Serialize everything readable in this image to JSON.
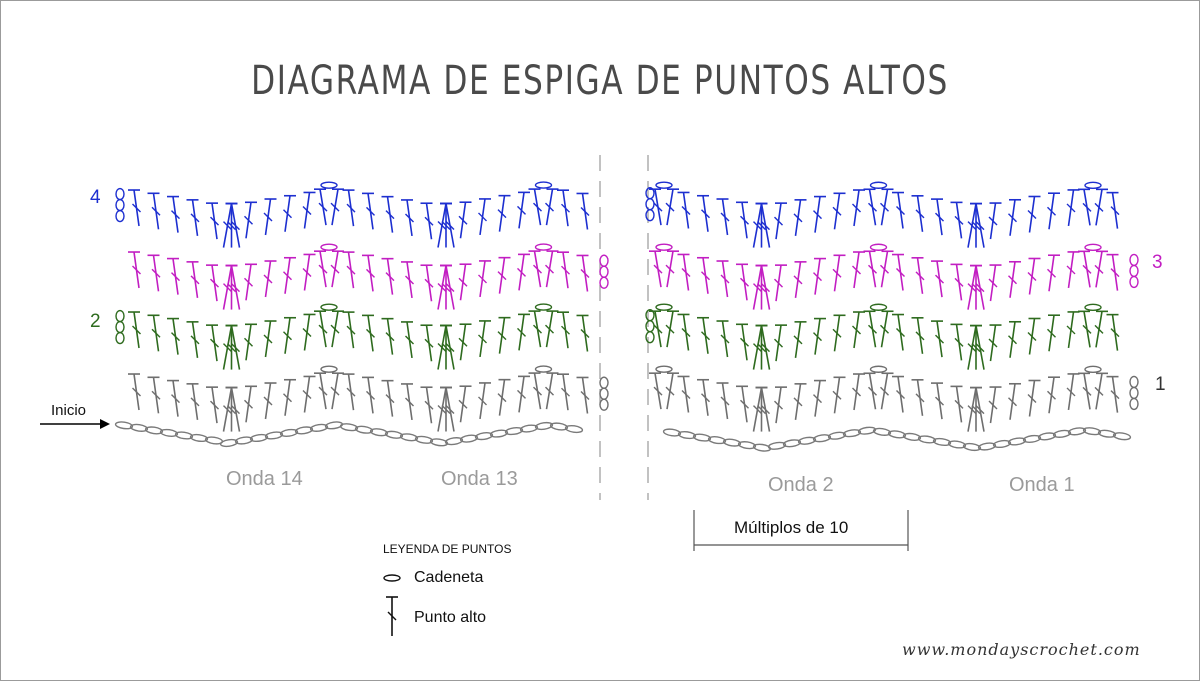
{
  "title": "DIAGRAMA DE ESPIGA DE PUNTOS ALTOS",
  "rows": [
    {
      "number": "1",
      "color": "#6e6e6e"
    },
    {
      "number": "2",
      "color": "#2e6b1e"
    },
    {
      "number": "3",
      "color": "#c21ec2"
    },
    {
      "number": "4",
      "color": "#1d2fd0"
    }
  ],
  "chain_color": "#7a7a7a",
  "waves": [
    "Onda 14",
    "Onda 13",
    "Onda 2",
    "Onda 1"
  ],
  "start_label": "Inicio",
  "multiples_label": "Múltiplos de 10",
  "legend": {
    "title": "LEYENDA DE PUNTOS",
    "items": [
      {
        "icon": "chain-stitch-icon",
        "label": "Cadeneta"
      },
      {
        "icon": "double-crochet-icon",
        "label": "Punto alto"
      }
    ]
  },
  "website": "www.mondayscrochet.com"
}
